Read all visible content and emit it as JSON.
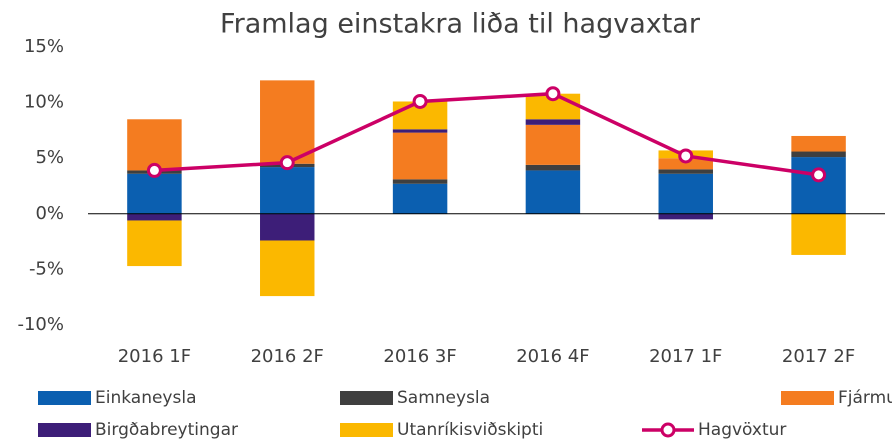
{
  "chart_data": {
    "type": "bar",
    "title": "Framlag einstakra liða til hagvaxtar",
    "categories": [
      "2016 1F",
      "2016 2F",
      "2016 3F",
      "2016 4F",
      "2017 1F",
      "2017 2F"
    ],
    "series": [
      {
        "name": "Einkaneysla",
        "color": "#0b5fb0",
        "values": [
          3.6,
          4.2,
          2.7,
          3.9,
          3.6,
          5.1
        ]
      },
      {
        "name": "Samneysla",
        "color": "#3f3f3f",
        "values": [
          0.3,
          0.3,
          0.4,
          0.5,
          0.4,
          0.5
        ]
      },
      {
        "name": "Fjármunamyndun",
        "color": "#f47c20",
        "values": [
          4.6,
          7.5,
          4.2,
          3.6,
          1.0,
          1.4
        ]
      },
      {
        "name": "Birgðabreytingar",
        "color": "#3d1e78",
        "values": [
          -0.6,
          -2.4,
          0.3,
          0.5,
          -0.5,
          0
        ]
      },
      {
        "name": "Utanríkisviðskipti",
        "color": "#fbb800",
        "values": [
          -4.1,
          -5.0,
          2.5,
          2.3,
          0.7,
          -3.7
        ]
      },
      {
        "name": "Hagvöxtur",
        "color": "#cc0066",
        "type": "line",
        "values": [
          3.9,
          4.6,
          10.1,
          10.8,
          5.2,
          3.5
        ]
      }
    ],
    "ylim": [
      -10,
      15
    ],
    "yticks": [
      {
        "value": -10,
        "label": "-10%"
      },
      {
        "value": -5,
        "label": "-5%"
      },
      {
        "value": 0,
        "label": "0%"
      },
      {
        "value": 5,
        "label": "5%"
      },
      {
        "value": 10,
        "label": "10%"
      },
      {
        "value": 15,
        "label": "15%"
      }
    ],
    "grid": false
  }
}
